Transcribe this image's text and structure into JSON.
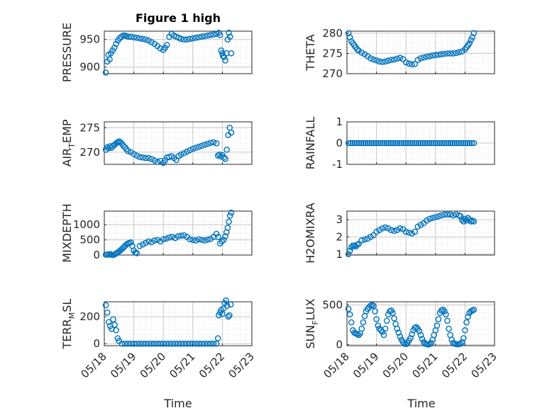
{
  "figure": {
    "title": "Figure 1 high",
    "xlabel": "Time"
  },
  "x_ticks": [
    "05/18",
    "05/19",
    "05/20",
    "05/21",
    "05/22",
    "05/23"
  ],
  "colors": {
    "marker": "#0072bd",
    "axis": "#262626",
    "grid": "#dcdcdc"
  },
  "chart_data": [
    {
      "type": "scatter",
      "ylabel": "PRESSURE",
      "xlim": [
        0,
        5
      ],
      "ylim": [
        888,
        965
      ],
      "yticks": [
        "900",
        "950"
      ],
      "ytick_values": [
        900,
        950
      ],
      "x": [
        0.05,
        0.1,
        0.14,
        0.18,
        0.22,
        0.28,
        0.34,
        0.4,
        0.46,
        0.52,
        0.58,
        0.64,
        0.7,
        0.76,
        0.82,
        0.9,
        1.0,
        1.1,
        1.2,
        1.3,
        1.4,
        1.5,
        1.6,
        1.7,
        1.8,
        1.9,
        2.0,
        2.06,
        2.12,
        2.2,
        2.28,
        2.36,
        2.44,
        2.52,
        2.6,
        2.7,
        2.8,
        2.9,
        3.0,
        3.1,
        3.2,
        3.3,
        3.4,
        3.5,
        3.6,
        3.7,
        3.8,
        3.88,
        3.92,
        3.96,
        4.0,
        4.02,
        4.06,
        4.1,
        4.14,
        4.18,
        4.22,
        4.26,
        4.3
      ],
      "y": [
        890,
        910,
        922,
        914,
        925,
        930,
        935,
        942,
        948,
        952,
        955,
        957,
        957,
        956,
        955,
        955,
        954,
        953,
        952,
        951,
        950,
        948,
        945,
        942,
        938,
        934,
        931,
        935,
        940,
        955,
        960,
        957,
        955,
        953,
        951,
        950,
        950,
        951,
        952,
        953,
        954,
        955,
        956,
        957,
        958,
        959,
        960,
        962,
        958,
        930,
        925,
        920,
        918,
        912,
        925,
        950,
        962,
        955,
        925
      ],
      "y_dir": "up"
    },
    {
      "type": "scatter",
      "ylabel": "THETA",
      "xlim": [
        0,
        5
      ],
      "ylim": [
        270,
        280.5
      ],
      "yticks": [
        "270",
        "275",
        "280"
      ],
      "ytick_values": [
        270,
        275,
        280
      ],
      "x": [
        0.05,
        0.1,
        0.15,
        0.2,
        0.25,
        0.3,
        0.35,
        0.4,
        0.5,
        0.6,
        0.7,
        0.8,
        0.9,
        1.0,
        1.1,
        1.2,
        1.3,
        1.4,
        1.5,
        1.6,
        1.7,
        1.8,
        1.9,
        2.0,
        2.1,
        2.2,
        2.3,
        2.4,
        2.5,
        2.6,
        2.7,
        2.8,
        2.9,
        3.0,
        3.1,
        3.2,
        3.3,
        3.4,
        3.5,
        3.6,
        3.7,
        3.8,
        3.9,
        4.0,
        4.05,
        4.1,
        4.15,
        4.2,
        4.25,
        4.3
      ],
      "y": [
        280,
        279,
        278,
        277.5,
        277,
        276.5,
        276,
        275.7,
        275.2,
        274.8,
        274.3,
        273.8,
        273.5,
        273.3,
        273,
        272.9,
        273,
        273.2,
        273.4,
        273.5,
        273.7,
        273.9,
        273.6,
        272.8,
        272.5,
        272.3,
        272.4,
        273.4,
        273.8,
        274,
        274.2,
        274.3,
        274.5,
        274.6,
        274.7,
        274.8,
        274.9,
        275,
        275,
        275,
        275.1,
        275.3,
        275.5,
        276,
        276.5,
        277,
        277.5,
        278.3,
        279,
        280
      ],
      "y_dir": "up"
    },
    {
      "type": "scatter",
      "ylabel": "AIR_TEMP",
      "xlim": [
        0,
        5
      ],
      "ylim": [
        267.5,
        276.2
      ],
      "yticks": [
        "270",
        "275"
      ],
      "ytick_values": [
        270,
        275
      ],
      "x": [
        0.05,
        0.1,
        0.15,
        0.2,
        0.25,
        0.3,
        0.35,
        0.4,
        0.45,
        0.5,
        0.55,
        0.6,
        0.65,
        0.7,
        0.75,
        0.8,
        0.9,
        1.0,
        1.1,
        1.2,
        1.3,
        1.4,
        1.5,
        1.6,
        1.7,
        1.8,
        1.9,
        2.0,
        2.06,
        2.12,
        2.2,
        2.28,
        2.36,
        2.44,
        2.52,
        2.6,
        2.7,
        2.8,
        2.9,
        3.0,
        3.1,
        3.2,
        3.3,
        3.4,
        3.5,
        3.6,
        3.7,
        3.8,
        3.85,
        3.9,
        3.95,
        4.0,
        4.05,
        4.1,
        4.15,
        4.2,
        4.25,
        4.3
      ],
      "y": [
        270.5,
        271,
        270.8,
        271.2,
        270.9,
        271.3,
        271.5,
        271.8,
        272,
        272.2,
        272,
        271.7,
        271.3,
        271,
        270.6,
        270.2,
        270,
        269.6,
        269.3,
        269,
        268.9,
        268.8,
        268.8,
        268.6,
        268.3,
        268,
        268.2,
        267.8,
        268.3,
        268.9,
        269,
        269.2,
        268.8,
        268.4,
        269.2,
        269.5,
        269.8,
        270.1,
        270.4,
        270.7,
        270.9,
        271.1,
        271.3,
        271.5,
        271.7,
        271.9,
        272,
        271.8,
        269.3,
        269.5,
        269.1,
        269.4,
        268.9,
        268.6,
        270.5,
        273.5,
        275,
        274
      ]
    },
    {
      "type": "scatter",
      "ylabel": "RAINFALL",
      "xlim": [
        0,
        5
      ],
      "ylim": [
        -1,
        1
      ],
      "yticks": [
        "-1",
        "0",
        "1"
      ],
      "ytick_values": [
        -1,
        0,
        1
      ],
      "x_range": [
        0.05,
        4.3
      ],
      "n_points": 60,
      "constant_y": 0
    },
    {
      "type": "scatter",
      "ylabel": "MIXDEPTH",
      "xlim": [
        0,
        5
      ],
      "ylim": [
        0,
        1450
      ],
      "yticks": [
        "0",
        "500",
        "1000"
      ],
      "ytick_values": [
        0,
        500,
        1000
      ],
      "x": [
        0.05,
        0.1,
        0.15,
        0.2,
        0.25,
        0.3,
        0.35,
        0.4,
        0.45,
        0.5,
        0.55,
        0.6,
        0.65,
        0.7,
        0.75,
        0.8,
        0.85,
        0.9,
        0.95,
        1.0,
        1.05,
        1.1,
        1.2,
        1.3,
        1.4,
        1.5,
        1.6,
        1.7,
        1.8,
        1.9,
        2.0,
        2.1,
        2.2,
        2.3,
        2.4,
        2.5,
        2.6,
        2.7,
        2.8,
        2.9,
        3.0,
        3.1,
        3.2,
        3.3,
        3.4,
        3.5,
        3.6,
        3.7,
        3.8,
        3.86,
        3.92,
        3.98,
        4.04,
        4.1,
        4.14,
        4.18,
        4.22,
        4.26,
        4.3
      ],
      "y": [
        10,
        20,
        15,
        30,
        10,
        5,
        20,
        50,
        80,
        120,
        160,
        200,
        250,
        300,
        350,
        380,
        400,
        420,
        300,
        150,
        80,
        60,
        300,
        350,
        400,
        450,
        420,
        480,
        500,
        450,
        520,
        540,
        580,
        600,
        560,
        620,
        640,
        650,
        600,
        520,
        500,
        480,
        520,
        500,
        480,
        510,
        530,
        600,
        700,
        600,
        380,
        450,
        500,
        620,
        750,
        900,
        1100,
        1300,
        1400
      ]
    },
    {
      "type": "scatter",
      "ylabel": "H2OMIXRA",
      "xlim": [
        0,
        5
      ],
      "ylim": [
        0.95,
        3.5
      ],
      "yticks": [
        "1",
        "2",
        "3"
      ],
      "ytick_values": [
        1,
        2,
        3
      ],
      "x": [
        0.05,
        0.1,
        0.15,
        0.2,
        0.25,
        0.3,
        0.35,
        0.4,
        0.5,
        0.6,
        0.7,
        0.8,
        0.9,
        1.0,
        1.1,
        1.2,
        1.3,
        1.4,
        1.5,
        1.6,
        1.7,
        1.8,
        1.9,
        2.0,
        2.1,
        2.2,
        2.3,
        2.4,
        2.5,
        2.6,
        2.7,
        2.8,
        2.9,
        3.0,
        3.1,
        3.2,
        3.3,
        3.4,
        3.5,
        3.6,
        3.7,
        3.8,
        3.85,
        3.9,
        3.95,
        4.0,
        4.05,
        4.1,
        4.15,
        4.2,
        4.25,
        4.3
      ],
      "y": [
        1.0,
        1.2,
        1.4,
        1.5,
        1.5,
        1.45,
        1.55,
        1.6,
        1.8,
        1.85,
        1.9,
        2.0,
        2.1,
        2.3,
        2.4,
        2.5,
        2.55,
        2.5,
        2.4,
        2.35,
        2.4,
        2.5,
        2.45,
        2.3,
        2.25,
        2.2,
        2.3,
        2.6,
        2.7,
        2.8,
        2.95,
        3.05,
        3.1,
        3.15,
        3.2,
        3.25,
        3.3,
        3.3,
        3.3,
        3.25,
        3.3,
        3.25,
        3.2,
        3.0,
        2.9,
        3.05,
        2.95,
        3.1,
        3.0,
        2.9,
        2.95,
        2.9
      ]
    },
    {
      "type": "scatter",
      "ylabel": "TERR_MSL",
      "xlim": [
        0,
        5
      ],
      "ylim": [
        -15,
        310
      ],
      "yticks": [
        "0",
        "200"
      ],
      "ytick_values": [
        0,
        200
      ],
      "x": [
        0.05,
        0.1,
        0.15,
        0.2,
        0.25,
        0.3,
        0.35,
        0.4,
        0.45,
        0.5,
        0.6,
        0.7,
        0.8,
        0.9,
        1.0,
        1.1,
        1.2,
        1.3,
        1.4,
        1.5,
        1.6,
        1.7,
        1.8,
        1.9,
        2.0,
        2.1,
        2.2,
        2.3,
        2.4,
        2.5,
        2.6,
        2.7,
        2.8,
        2.9,
        3.0,
        3.1,
        3.2,
        3.3,
        3.4,
        3.5,
        3.6,
        3.7,
        3.8,
        3.85,
        3.88,
        3.92,
        3.96,
        4.0,
        4.04,
        4.08,
        4.12,
        4.16,
        4.2,
        4.24,
        4.28
      ],
      "y": [
        285,
        230,
        160,
        130,
        110,
        180,
        140,
        100,
        40,
        20,
        0,
        0,
        0,
        0,
        0,
        0,
        0,
        0,
        0,
        0,
        0,
        0,
        0,
        0,
        0,
        0,
        0,
        0,
        0,
        0,
        0,
        0,
        0,
        0,
        0,
        0,
        0,
        0,
        0,
        0,
        0,
        0,
        0,
        40,
        210,
        230,
        250,
        220,
        260,
        300,
        320,
        280,
        200,
        210,
        290
      ]
    },
    {
      "type": "scatter",
      "ylabel": "SUN_FLUX",
      "xlim": [
        0,
        5
      ],
      "ylim": [
        -15,
        540
      ],
      "yticks": [
        "0",
        "500"
      ],
      "ytick_values": [
        0,
        500
      ],
      "x": [
        0.05,
        0.1,
        0.15,
        0.2,
        0.25,
        0.3,
        0.35,
        0.4,
        0.45,
        0.5,
        0.55,
        0.6,
        0.65,
        0.7,
        0.75,
        0.8,
        0.85,
        0.9,
        0.95,
        1.0,
        1.05,
        1.1,
        1.15,
        1.2,
        1.25,
        1.3,
        1.35,
        1.4,
        1.45,
        1.5,
        1.55,
        1.6,
        1.65,
        1.7,
        1.75,
        1.8,
        1.85,
        1.9,
        1.95,
        2.0,
        2.05,
        2.1,
        2.15,
        2.2,
        2.25,
        2.3,
        2.35,
        2.4,
        2.45,
        2.5,
        2.55,
        2.6,
        2.65,
        2.7,
        2.75,
        2.8,
        2.85,
        2.9,
        2.95,
        3.0,
        3.05,
        3.1,
        3.15,
        3.2,
        3.25,
        3.3,
        3.35,
        3.4,
        3.45,
        3.5,
        3.55,
        3.6,
        3.65,
        3.7,
        3.75,
        3.8,
        3.85,
        3.9,
        3.95,
        4.0,
        4.05,
        4.1,
        4.15,
        4.2,
        4.25,
        4.3
      ],
      "y": [
        450,
        380,
        280,
        180,
        150,
        140,
        130,
        120,
        140,
        200,
        280,
        360,
        420,
        450,
        470,
        490,
        500,
        490,
        420,
        320,
        240,
        200,
        180,
        160,
        120,
        200,
        300,
        380,
        420,
        430,
        400,
        330,
        260,
        200,
        150,
        100,
        60,
        30,
        10,
        5,
        20,
        50,
        80,
        130,
        180,
        210,
        220,
        200,
        170,
        120,
        70,
        30,
        10,
        5,
        0,
        5,
        20,
        60,
        120,
        180,
        240,
        320,
        400,
        430,
        440,
        420,
        380,
        300,
        200,
        120,
        60,
        20,
        10,
        5,
        3,
        5,
        10,
        30,
        80,
        180,
        280,
        350,
        400,
        420,
        430,
        440
      ],
      "ylabel_main": "SUN",
      "ylabel_sub": "F",
      "ylabel_rest": "LUX"
    }
  ],
  "ylabels": {
    "p1": "PRESSURE",
    "p2": "THETA",
    "p3_main": "AIR",
    "p3_sub": "T",
    "p3_rest": "EMP",
    "p4": "RAINFALL",
    "p5": "MIXDEPTH",
    "p6": "H2OMIXRA",
    "p7_main": "TERR",
    "p7_sub": "M",
    "p7_rest": "SL",
    "p8_main": "SUN",
    "p8_sub": "F",
    "p8_rest": "LUX"
  }
}
